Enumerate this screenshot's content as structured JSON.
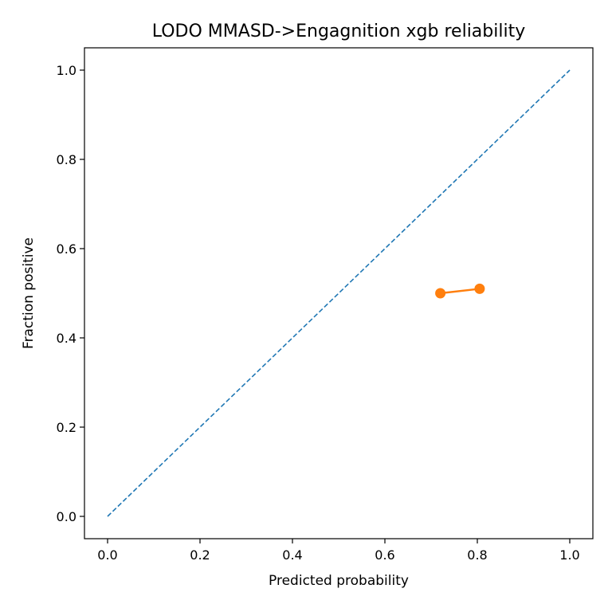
{
  "chart_data": {
    "type": "line",
    "title": "LODO MMASD->Engagnition xgb reliability",
    "xlabel": "Predicted probability",
    "ylabel": "Fraction positive",
    "xlim": [
      -0.05,
      1.05
    ],
    "ylim": [
      -0.05,
      1.05
    ],
    "x_ticks": [
      "0.0",
      "0.2",
      "0.4",
      "0.6",
      "0.8",
      "1.0"
    ],
    "y_ticks": [
      "0.0",
      "0.2",
      "0.4",
      "0.6",
      "0.8",
      "1.0"
    ],
    "grid": false,
    "legend": "none",
    "series": [
      {
        "style": "dashed",
        "color": "#1f77b4",
        "x": [
          0.0,
          1.0
        ],
        "y": [
          0.0,
          1.0
        ]
      },
      {
        "style": "line-marker",
        "color": "#ff7f0e",
        "x": [
          0.72,
          0.805
        ],
        "y": [
          0.5,
          0.51
        ]
      }
    ]
  }
}
